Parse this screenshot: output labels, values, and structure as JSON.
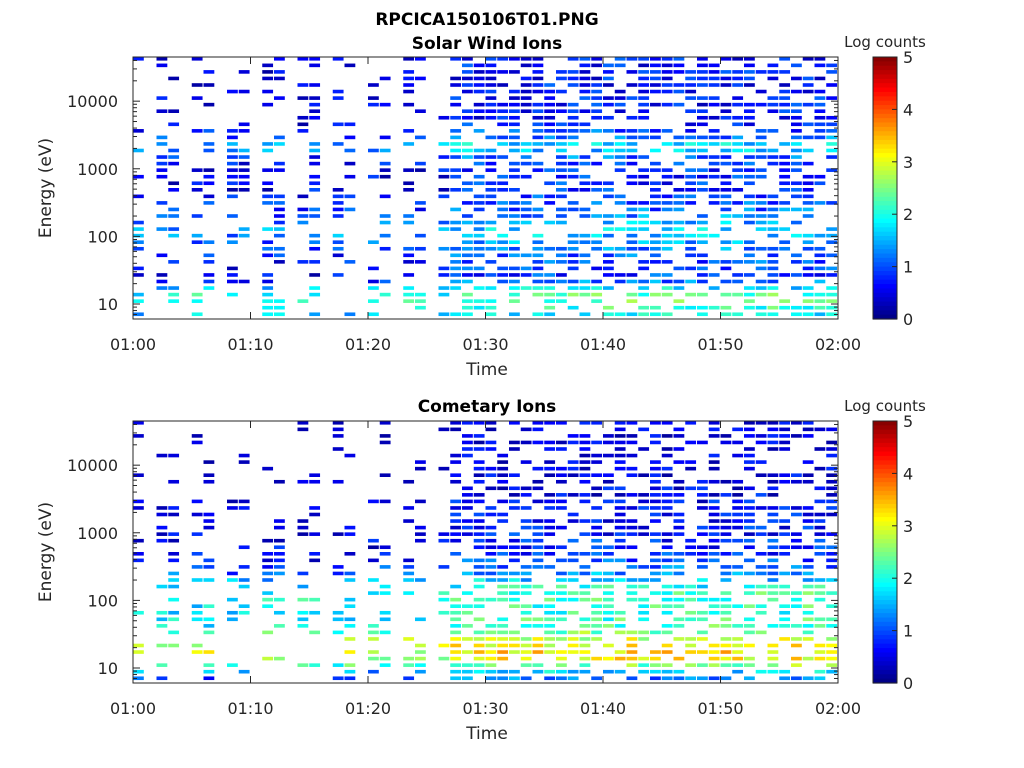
{
  "figure": {
    "title": "RPCICA150106T01.PNG"
  },
  "chart_data": [
    {
      "type": "heatmap",
      "title": "Solar Wind Ions",
      "xlabel": "Time",
      "ylabel": "Energy (eV)",
      "x_ticks": [
        "01:00",
        "01:10",
        "01:20",
        "01:30",
        "01:40",
        "01:50",
        "02:00"
      ],
      "x_range": [
        "01:00",
        "02:00"
      ],
      "y_ticks": [
        10,
        100,
        1000,
        10000
      ],
      "y_scale": "log",
      "y_range": [
        6,
        45000
      ],
      "colorbar": {
        "label": "Log counts",
        "ticks": [
          0,
          1,
          2,
          3,
          4,
          5
        ],
        "range": [
          0,
          5
        ],
        "colormap": "jet"
      },
      "profile": [
        [
          7,
          1.6
        ],
        [
          9,
          1.9
        ],
        [
          12,
          2.1
        ],
        [
          15,
          1.7
        ],
        [
          20,
          0.9
        ],
        [
          25,
          0.6
        ],
        [
          30,
          0.6
        ],
        [
          40,
          0.7
        ],
        [
          60,
          0.9
        ],
        [
          90,
          1.2
        ],
        [
          120,
          1.4
        ],
        [
          160,
          1.1
        ],
        [
          250,
          0.8
        ],
        [
          400,
          0.6
        ],
        [
          700,
          0.5
        ],
        [
          1000,
          0.6
        ],
        [
          1500,
          0.9
        ],
        [
          2000,
          1.6
        ],
        [
          3000,
          0.8
        ],
        [
          5000,
          0.4
        ],
        [
          10000,
          0.4
        ],
        [
          30000,
          0.4
        ]
      ]
    },
    {
      "type": "heatmap",
      "title": "Cometary Ions",
      "xlabel": "Time",
      "ylabel": "Energy (eV)",
      "x_ticks": [
        "01:00",
        "01:10",
        "01:20",
        "01:30",
        "01:40",
        "01:50",
        "02:00"
      ],
      "x_range": [
        "01:00",
        "02:00"
      ],
      "y_ticks": [
        10,
        100,
        1000,
        10000
      ],
      "y_scale": "log",
      "y_range": [
        6,
        45000
      ],
      "colorbar": {
        "label": "Log counts",
        "ticks": [
          0,
          1,
          2,
          3,
          4,
          5
        ],
        "range": [
          0,
          5
        ],
        "colormap": "jet"
      },
      "profile": [
        [
          7,
          0.9
        ],
        [
          9,
          1.6
        ],
        [
          12,
          2.7
        ],
        [
          15,
          3.0
        ],
        [
          20,
          2.8
        ],
        [
          25,
          2.6
        ],
        [
          30,
          2.3
        ],
        [
          40,
          1.9
        ],
        [
          60,
          1.8
        ],
        [
          90,
          1.9
        ],
        [
          120,
          1.9
        ],
        [
          160,
          1.6
        ],
        [
          250,
          1.0
        ],
        [
          400,
          0.6
        ],
        [
          700,
          0.5
        ],
        [
          1000,
          0.4
        ],
        [
          1500,
          0.3
        ],
        [
          2000,
          0.4
        ],
        [
          3000,
          0.3
        ],
        [
          5000,
          0.2
        ],
        [
          10000,
          0.1
        ],
        [
          30000,
          0.1
        ]
      ]
    }
  ],
  "colors": {
    "background": "#ffffff",
    "axis": "#262626"
  }
}
